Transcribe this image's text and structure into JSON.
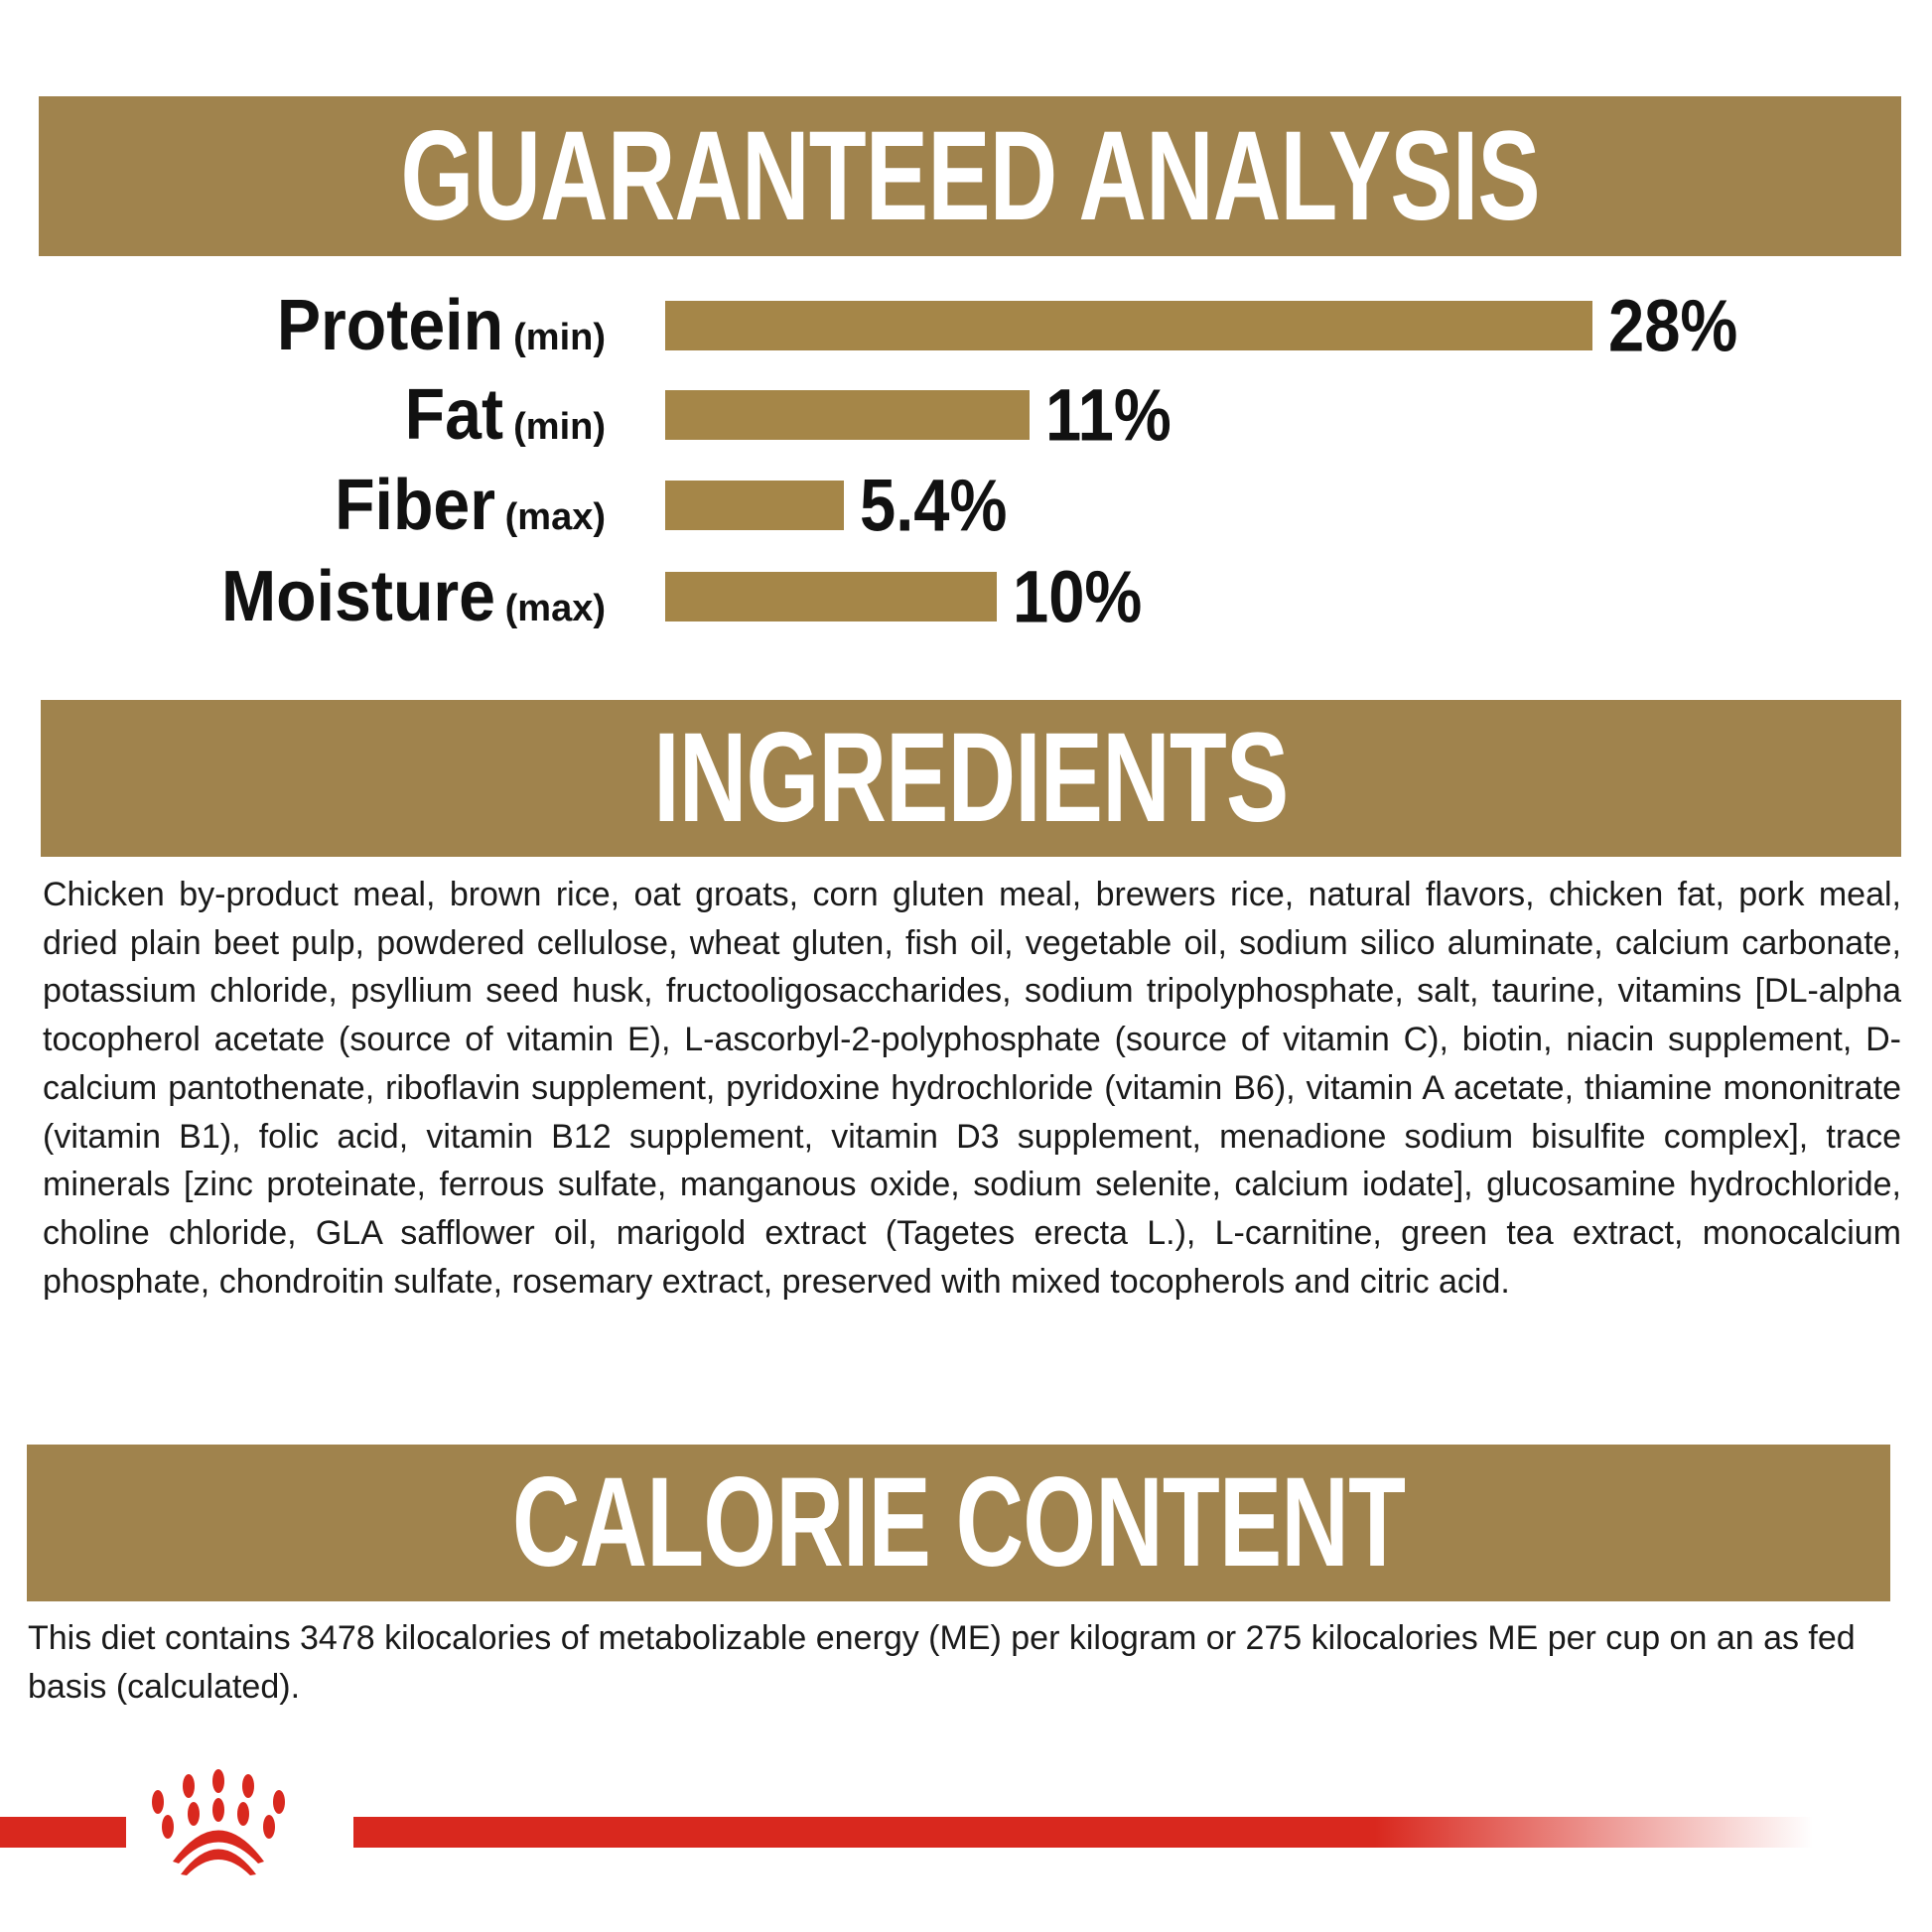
{
  "guaranteed_analysis": {
    "title": "GUARANTEED ANALYSIS",
    "items": [
      {
        "name": "Protein",
        "qualifier": "(min)",
        "value": 28,
        "label": "28%"
      },
      {
        "name": "Fat",
        "qualifier": "(min)",
        "value": 11,
        "label": "11%"
      },
      {
        "name": "Fiber",
        "qualifier": "(max)",
        "value": 5.4,
        "label": "5.4%"
      },
      {
        "name": "Moisture",
        "qualifier": "(max)",
        "value": 10,
        "label": "10%"
      }
    ]
  },
  "ingredients": {
    "title": "INGREDIENTS",
    "text": "Chicken by-product meal, brown rice, oat groats, corn gluten meal, brewers rice, natural flavors, chicken fat, pork meal, dried plain beet pulp, powdered cellulose, wheat gluten, fish oil, vegetable oil, sodium silico aluminate, calcium carbonate, potassium chloride, psyllium seed husk, fructooligosaccharides, sodium tripolyphosphate, salt, taurine, vitamins [DL-alpha tocopherol acetate (source of vitamin E), L-ascorbyl-2-polyphosphate (source of vitamin C), biotin, niacin supplement, D-calcium pantothenate, riboflavin supplement, pyridoxine hydrochloride (vitamin B6), vitamin A acetate, thiamine mononitrate (vitamin B1), folic acid, vitamin B12 supplement, vitamin D3 supplement, menadione sodium bisulfite complex], trace minerals [zinc proteinate, ferrous sulfate, manganous oxide, sodium selenite, calcium iodate], glucosamine hydrochloride, choline chloride, GLA safflower oil, marigold extract (Tagetes erecta L.), L-carnitine, green tea extract, monocalcium phosphate, chondroitin sulfate, rosemary extract, preserved with mixed tocopherols and citric acid."
  },
  "calorie_content": {
    "title": "CALORIE CONTENT",
    "text": "This diet contains 3478 kilocalories of metabolizable energy (ME) per kilogram or 275 kilocalories ME per cup on an as fed basis (calculated)."
  },
  "colors": {
    "band": "#a0834d",
    "bar": "#a58648",
    "brand_red": "#d9281e"
  },
  "logo": "royal-canin-crown-icon"
}
